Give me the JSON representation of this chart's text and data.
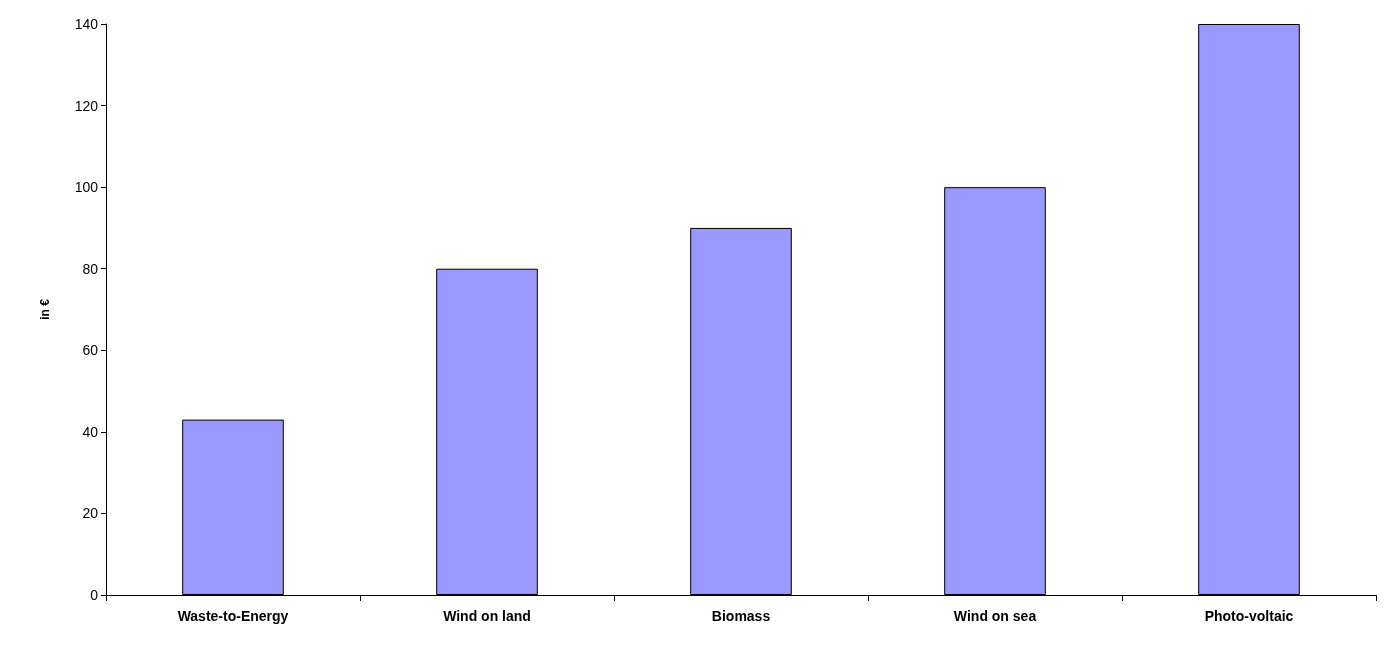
{
  "chart_data": {
    "type": "bar",
    "ylabel": "in €",
    "categories": [
      "Waste-to-Energy",
      "Wind on land",
      "Biomass",
      "Wind on sea",
      "Photo-voltaic"
    ],
    "values": [
      43,
      80,
      90,
      100,
      140
    ],
    "color": "#9999ff",
    "ylim": [
      0,
      140
    ],
    "yticks": [
      0,
      20,
      40,
      60,
      80,
      100,
      120,
      140
    ],
    "grid": false
  }
}
